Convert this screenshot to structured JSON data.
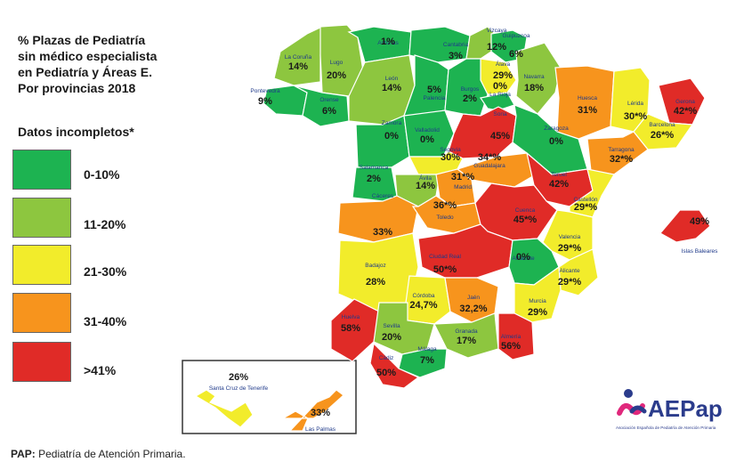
{
  "title": "% Plazas de Pediatría\nsin médico especialista\nen Pediatría y Áreas E.\nPor provincias 2018",
  "subtitle": "Datos incompletos*",
  "legend": [
    {
      "label": "0-10%",
      "color": "#1db351"
    },
    {
      "label": "11-20%",
      "color": "#8dc63f"
    },
    {
      "label": "21-30%",
      "color": "#f2ec2b"
    },
    {
      "label": "31-40%",
      "color": "#f7941d"
    },
    {
      "label": ">41%",
      "color": "#e02b27"
    }
  ],
  "footer": {
    "abbr": "PAP:",
    "text": " Pediatría de Atención Primaria."
  },
  "logo": {
    "text": "AEPap",
    "tagline": "Asociación Española de Pediatría de Atención Primaria"
  },
  "provinces": [
    {
      "name": "La Coruña",
      "value": "14%",
      "color": "#8dc63f"
    },
    {
      "name": "Lugo",
      "value": "20%",
      "color": "#8dc63f"
    },
    {
      "name": "Asturias",
      "value": "1%",
      "color": "#1db351"
    },
    {
      "name": "Cantabria",
      "value": "3%",
      "color": "#1db351"
    },
    {
      "name": "Vizcaya",
      "value": "12%",
      "color": "#8dc63f"
    },
    {
      "name": "Guipuzcoa",
      "value": "6%",
      "color": "#1db351"
    },
    {
      "name": "Álava",
      "value": "29%",
      "color": "#f2ec2b"
    },
    {
      "name": "Navarra",
      "value": "18%",
      "color": "#8dc63f"
    },
    {
      "name": "Pontevedra",
      "value": "9%",
      "color": "#1db351"
    },
    {
      "name": "Orense",
      "value": "6%",
      "color": "#1db351"
    },
    {
      "name": "León",
      "value": "14%",
      "color": "#8dc63f"
    },
    {
      "name": "Palencia",
      "value": "5%",
      "color": "#1db351"
    },
    {
      "name": "Burgos",
      "value": "2%",
      "color": "#1db351"
    },
    {
      "name": "La Rioja",
      "value": "0%",
      "color": "#1db351"
    },
    {
      "name": "Huesca",
      "value": "31%",
      "color": "#f7941d"
    },
    {
      "name": "Lérida",
      "value": "30*%",
      "color": "#f2ec2b"
    },
    {
      "name": "Gerona",
      "value": "42*%",
      "color": "#e02b27"
    },
    {
      "name": "Barcelona",
      "value": "26*%",
      "color": "#f2ec2b"
    },
    {
      "name": "Zamora",
      "value": "0%",
      "color": "#1db351"
    },
    {
      "name": "Valladolid",
      "value": "0%",
      "color": "#1db351"
    },
    {
      "name": "Soria",
      "value": "45%",
      "color": "#e02b27"
    },
    {
      "name": "Zaragoza",
      "value": "0%",
      "color": "#1db351"
    },
    {
      "name": "Tarragona",
      "value": "32*%",
      "color": "#f7941d"
    },
    {
      "name": "Salamanca",
      "value": "2%",
      "color": "#1db351"
    },
    {
      "name": "Segovia",
      "value": "30%",
      "color": "#f2ec2b"
    },
    {
      "name": "Ávila",
      "value": "14%",
      "color": "#8dc63f"
    },
    {
      "name": "Guadalajara",
      "value": "34*%",
      "color": "#f7941d"
    },
    {
      "name": "Madrid",
      "value": "31*%",
      "color": "#f7941d"
    },
    {
      "name": "Teruel",
      "value": "42%",
      "color": "#e02b27"
    },
    {
      "name": "Castellón",
      "value": "29*%",
      "color": "#f2ec2b"
    },
    {
      "name": "Cáceres",
      "value": "33%",
      "color": "#f7941d"
    },
    {
      "name": "Toledo",
      "value": "36*%",
      "color": "#f7941d"
    },
    {
      "name": "Cuenca",
      "value": "45*%",
      "color": "#e02b27"
    },
    {
      "name": "Islas Baleares",
      "value": "49%",
      "color": "#e02b27"
    },
    {
      "name": "Valencia",
      "value": "29*%",
      "color": "#f2ec2b"
    },
    {
      "name": "Badajoz",
      "value": "28%",
      "color": "#f2ec2b"
    },
    {
      "name": "Ciudad Real",
      "value": "50*%",
      "color": "#e02b27"
    },
    {
      "name": "Albacete",
      "value": "0%",
      "color": "#1db351"
    },
    {
      "name": "Alicante",
      "value": "29*%",
      "color": "#f2ec2b"
    },
    {
      "name": "Córdoba",
      "value": "24,7%",
      "color": "#f2ec2b"
    },
    {
      "name": "Jaén",
      "value": "32,2%",
      "color": "#f7941d"
    },
    {
      "name": "Murcia",
      "value": "29%",
      "color": "#f2ec2b"
    },
    {
      "name": "Huelva",
      "value": "58%",
      "color": "#e02b27"
    },
    {
      "name": "Sevilla",
      "value": "20%",
      "color": "#8dc63f"
    },
    {
      "name": "Granada",
      "value": "17%",
      "color": "#8dc63f"
    },
    {
      "name": "Almería",
      "value": "56%",
      "color": "#e02b27"
    },
    {
      "name": "Málaga",
      "value": "7%",
      "color": "#1db351"
    },
    {
      "name": "Cádiz",
      "value": "50%",
      "color": "#e02b27"
    },
    {
      "name": "Santa Cruz de Tenerife",
      "value": "26%",
      "color": "#f2ec2b"
    },
    {
      "name": "Las Palmas",
      "value": "33%",
      "color": "#f7941d"
    }
  ]
}
